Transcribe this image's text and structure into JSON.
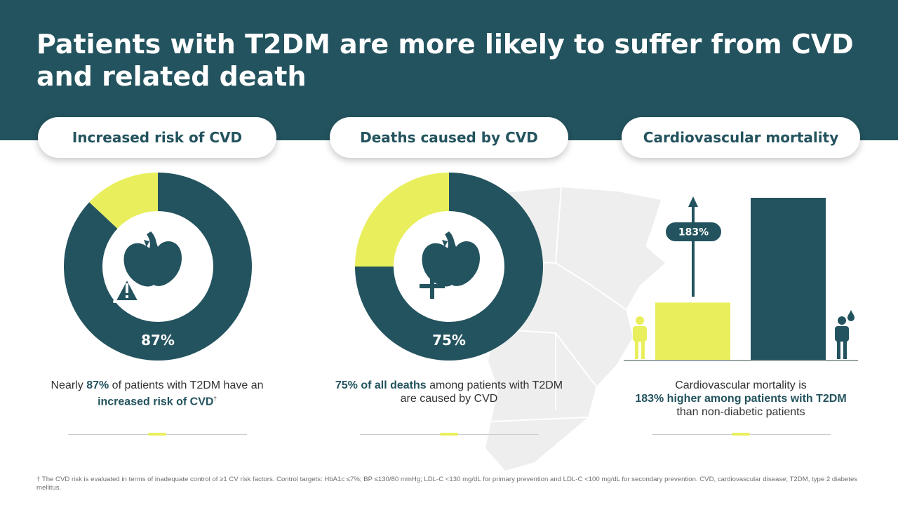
{
  "slide": {
    "title": "Patients with T2DM are more likely to suffer from CVD and related death"
  },
  "colors": {
    "dark_teal": "#23535e",
    "yellow": "#e9ef5c",
    "white": "#ffffff",
    "map_grey": "#eeeeee"
  },
  "panels": [
    {
      "heading": "Increased risk of CVD",
      "icon": "heart-warning-icon",
      "chart_data": {
        "type": "pie",
        "slices": [
          {
            "value": 87,
            "color": "#23535e"
          },
          {
            "value": 13,
            "color": "#e9ef5c"
          }
        ],
        "data_label": "87%"
      },
      "desc": {
        "pre": "Nearly ",
        "b1": "87%",
        "mid": " of patients with T2DM have an",
        "b2": "increased risk of CVD",
        "sup": "†"
      }
    },
    {
      "heading": "Deaths caused by CVD",
      "icon": "heart-plus-icon",
      "chart_data": {
        "type": "pie",
        "slices": [
          {
            "value": 75,
            "color": "#23535e"
          },
          {
            "value": 25,
            "color": "#e9ef5c"
          }
        ],
        "data_label": "75%"
      },
      "desc": {
        "b1": "75% of all deaths",
        "mid": " among patients with T2DM",
        "line2": "are caused by CVD"
      }
    },
    {
      "heading": "Cardiovascular mortality",
      "chart_data": {
        "type": "bar",
        "bars": [
          {
            "value": 100,
            "color": "#e9ef5c"
          },
          {
            "value": 283,
            "color": "#23535e"
          }
        ],
        "annotation": "183%"
      },
      "desc": {
        "line1": "Cardiovascular mortality is",
        "b1": "183% higher among patients with T2DM",
        "line3": "than non-diabetic patients"
      }
    }
  ],
  "footnote": "† The CVD risk is evaluated in terms of inadequate control of ≥1 CV risk factors. Control targets: HbA1c ≤7%; BP ≤130/80 mmHg; LDL-C <130 mg/dL for primary prevention and LDL-C <100 mg/dL for secondary prevention. CVD, cardiovascular disease; T2DM, type 2 diabetes mellitus."
}
